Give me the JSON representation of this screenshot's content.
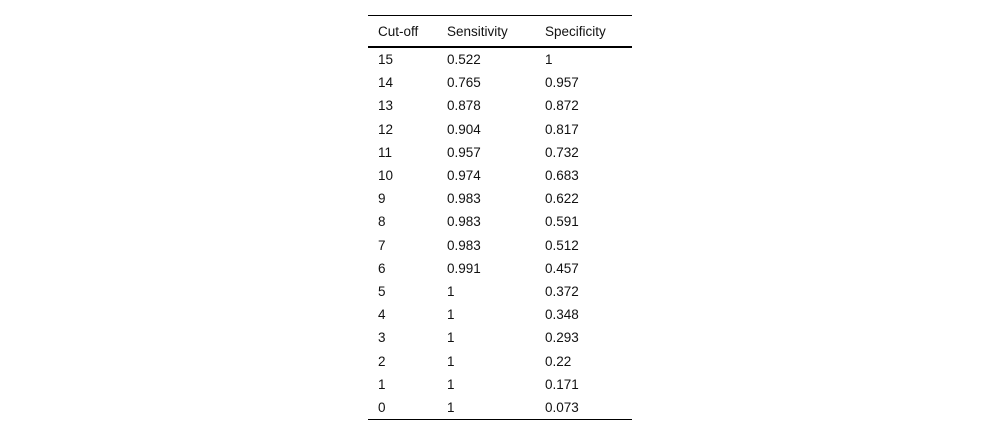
{
  "table": {
    "columns": [
      "Cut-off",
      "Sensitivity",
      "Specificity"
    ],
    "rows": [
      [
        "15",
        "0.522",
        "1"
      ],
      [
        "14",
        "0.765",
        "0.957"
      ],
      [
        "13",
        "0.878",
        "0.872"
      ],
      [
        "12",
        "0.904",
        "0.817"
      ],
      [
        "11",
        "0.957",
        "0.732"
      ],
      [
        "10",
        "0.974",
        "0.683"
      ],
      [
        "9",
        "0.983",
        "0.622"
      ],
      [
        "8",
        "0.983",
        "0.591"
      ],
      [
        "7",
        "0.983",
        "0.512"
      ],
      [
        "6",
        "0.991",
        "0.457"
      ],
      [
        "5",
        "1",
        "0.372"
      ],
      [
        "4",
        "1",
        "0.348"
      ],
      [
        "3",
        "1",
        "0.293"
      ],
      [
        "2",
        "1",
        "0.22"
      ],
      [
        "1",
        "1",
        "0.171"
      ],
      [
        "0",
        "1",
        "0.073"
      ]
    ]
  },
  "chart_data": {
    "type": "table",
    "title": "",
    "columns": [
      "Cut-off",
      "Sensitivity",
      "Specificity"
    ],
    "rows": [
      [
        15,
        0.522,
        1
      ],
      [
        14,
        0.765,
        0.957
      ],
      [
        13,
        0.878,
        0.872
      ],
      [
        12,
        0.904,
        0.817
      ],
      [
        11,
        0.957,
        0.732
      ],
      [
        10,
        0.974,
        0.683
      ],
      [
        9,
        0.983,
        0.622
      ],
      [
        8,
        0.983,
        0.591
      ],
      [
        7,
        0.983,
        0.512
      ],
      [
        6,
        0.991,
        0.457
      ],
      [
        5,
        1,
        0.372
      ],
      [
        4,
        1,
        0.348
      ],
      [
        3,
        1,
        0.293
      ],
      [
        2,
        1,
        0.22
      ],
      [
        1,
        1,
        0.171
      ],
      [
        0,
        1,
        0.073
      ]
    ]
  },
  "colors": {
    "background": "#ffffff",
    "text": "#111111",
    "rule": "#000000"
  }
}
